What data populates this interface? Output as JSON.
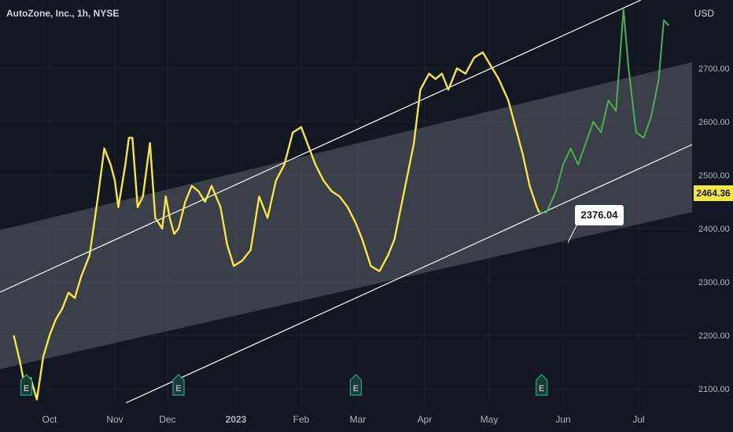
{
  "header": {
    "title": "AutoZone, Inc., 1h, NYSE",
    "currency": "USD"
  },
  "last_price_label": "2464.36",
  "callout_label": "2376.04",
  "colors": {
    "background": "#131722",
    "primary_series": "#f5e642",
    "secondary_series": "#4caf50",
    "channel_fill": "#5d606b",
    "channel_line": "#ffffff",
    "earnings_marker": "#26a69a"
  },
  "chart_data": {
    "type": "line",
    "title": "AutoZone, Inc., 1h, NYSE",
    "xlabel": "",
    "ylabel": "USD",
    "x_ticks": [
      "Oct",
      "Nov",
      "Dec",
      "2023",
      "Feb",
      "Mar",
      "Apr",
      "May",
      "Jun",
      "Jul"
    ],
    "y_ticks": [
      "2100.00",
      "2200.00",
      "2300.00",
      "2400.00",
      "2500.00",
      "2600.00",
      "2700.00"
    ],
    "ylim": [
      2070,
      2820
    ],
    "grid": true,
    "earnings_markers": [
      {
        "label": "E",
        "x": "Sep 20"
      },
      {
        "label": "E",
        "x": "Dec 6"
      },
      {
        "label": "E",
        "x": "Feb 28"
      },
      {
        "label": "E",
        "x": "May 23"
      }
    ],
    "series": [
      {
        "values_x": [
          "Sep 14",
          "Sep 17",
          "Sep 20",
          "Sep 22",
          "Sep 25",
          "Sep 28",
          "Oct 1",
          "Oct 4",
          "Oct 7",
          "Oct 10",
          "Oct 13",
          "Oct 16",
          "Oct 20",
          "Oct 24",
          "Oct 27",
          "Oct 30",
          "Nov 1",
          "Nov 3",
          "Nov 7",
          "Nov 9",
          "Nov 11",
          "Nov 14",
          "Nov 17",
          "Nov 21",
          "Nov 24",
          "Nov 28",
          "Nov 30",
          "Dec 2",
          "Dec 4",
          "Dec 6",
          "Dec 9",
          "Dec 12",
          "Dec 15",
          "Dec 18",
          "Dec 21",
          "Dec 25",
          "Dec 28",
          "Dec 31",
          "Jan 4",
          "Jan 8",
          "Jan 12",
          "Jan 16",
          "Jan 20",
          "Jan 24",
          "Jan 28",
          "Feb 1",
          "Feb 4",
          "Feb 8",
          "Feb 12",
          "Feb 16",
          "Feb 20",
          "Feb 24",
          "Feb 28",
          "Mar 3",
          "Mar 7",
          "Mar 11",
          "Mar 15",
          "Mar 18",
          "Mar 21",
          "Mar 24",
          "Mar 27",
          "Mar 30",
          "Apr 3",
          "Apr 6",
          "Apr 9",
          "Apr 12",
          "Apr 16",
          "Apr 20",
          "Apr 24",
          "Apr 28",
          "May 1",
          "May 5",
          "May 9",
          "May 12",
          "May 15",
          "May 18",
          "May 21",
          "May 22"
        ],
        "values": [
          2200,
          2150,
          2090,
          2120,
          2080,
          2160,
          2200,
          2230,
          2250,
          2280,
          2270,
          2310,
          2350,
          2460,
          2550,
          2520,
          2490,
          2440,
          2520,
          2570,
          2570,
          2440,
          2460,
          2560,
          2420,
          2400,
          2460,
          2420,
          2390,
          2400,
          2450,
          2480,
          2470,
          2450,
          2480,
          2440,
          2370,
          2330,
          2340,
          2360,
          2460,
          2420,
          2490,
          2520,
          2580,
          2590,
          2560,
          2520,
          2490,
          2470,
          2460,
          2440,
          2410,
          2380,
          2330,
          2320,
          2350,
          2380,
          2440,
          2500,
          2560,
          2660,
          2690,
          2680,
          2690,
          2660,
          2700,
          2690,
          2720,
          2730,
          2710,
          2680,
          2640,
          2590,
          2540,
          2480,
          2440,
          2430
        ]
      },
      {
        "values_x": [
          "May 22",
          "May 25",
          "May 29",
          "Jun 1",
          "Jun 4",
          "Jun 7",
          "Jun 10",
          "Jun 13",
          "Jun 16",
          "Jun 19",
          "Jun 22",
          "Jun 25",
          "Jun 27",
          "Jun 30",
          "Jul 3",
          "Jul 6",
          "Jul 9",
          "Jul 11",
          "Jul 13"
        ],
        "values": [
          2430,
          2430,
          2470,
          2520,
          2550,
          2520,
          2560,
          2600,
          2580,
          2640,
          2620,
          2810,
          2700,
          2580,
          2570,
          2610,
          2680,
          2790,
          2780
        ]
      }
    ]
  }
}
